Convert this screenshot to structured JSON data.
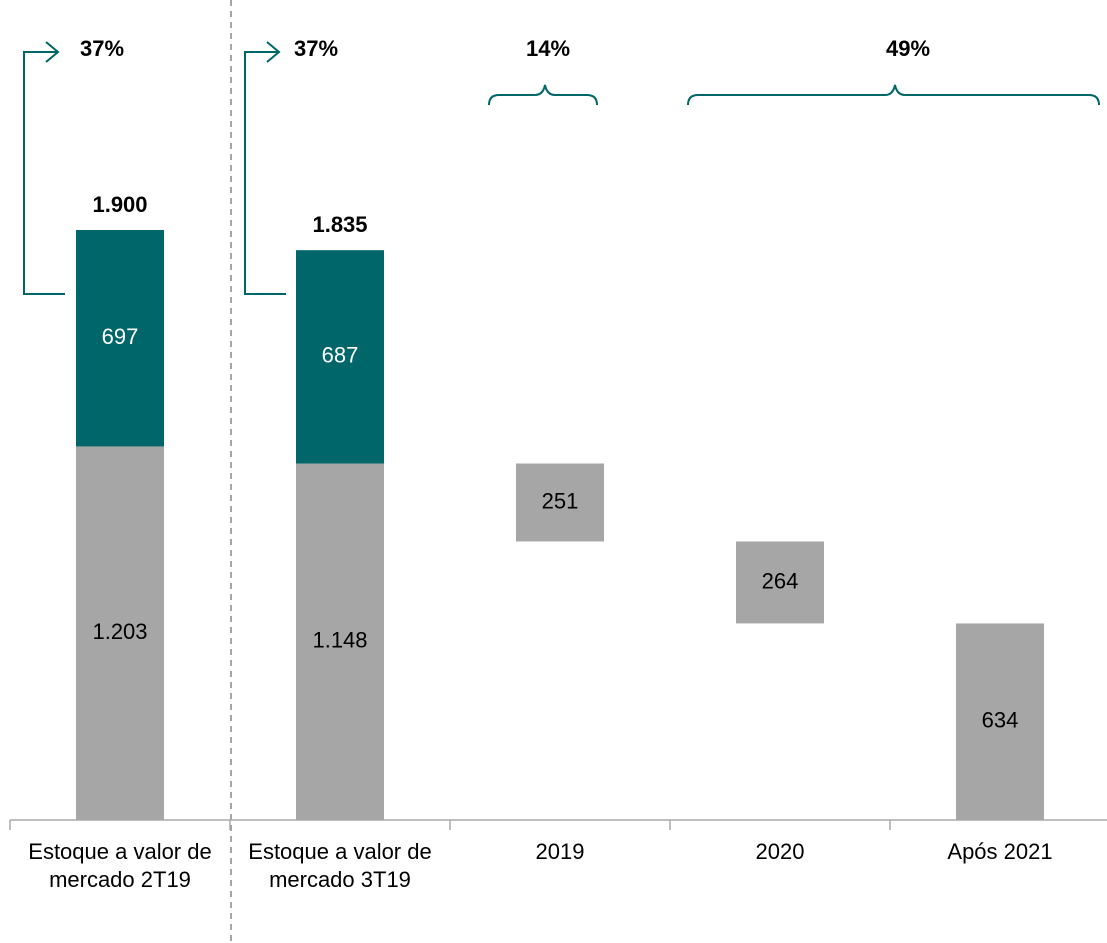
{
  "chart_data": {
    "type": "waterfall",
    "categories": [
      "Estoque a valor de mercado 2T19",
      "Estoque a valor de mercado 3T19",
      "2019",
      "2020",
      "Após 2021"
    ],
    "series": [
      {
        "color": "#a6a6a6",
        "values": [
          1203,
          1148,
          251,
          264,
          634
        ],
        "value_labels": [
          "1.203",
          "1.148",
          "251",
          "264",
          "634"
        ]
      },
      {
        "color": "#00666a",
        "values": [
          697,
          687,
          null,
          null,
          null
        ],
        "value_labels": [
          "697",
          "687",
          null,
          null,
          null
        ]
      }
    ],
    "totals": [
      1900,
      1835,
      null,
      null,
      null
    ],
    "total_labels": [
      "1.900",
      "1.835",
      null,
      null,
      null
    ],
    "annotations": [
      "37%",
      "37%",
      "14%",
      "49%"
    ]
  }
}
